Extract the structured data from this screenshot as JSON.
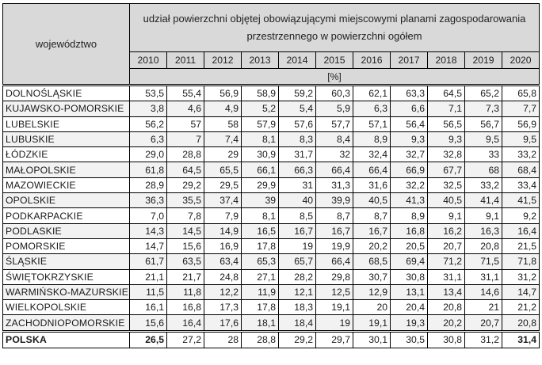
{
  "table": {
    "header": {
      "region_label": "województwo",
      "title": "udział powierzchni objętej obowiązującymi miejscowymi planami zagospodarowania przestrzennego w powierzchni ogółem",
      "years": [
        "2010",
        "2011",
        "2012",
        "2013",
        "2014",
        "2015",
        "2016",
        "2017",
        "2018",
        "2019",
        "2020"
      ],
      "unit": "[%]"
    },
    "rows": [
      {
        "name": "DOLNOŚLĄSKIE",
        "values": [
          "53,5",
          "55,4",
          "56,9",
          "58,9",
          "59,2",
          "60,3",
          "62,1",
          "63,3",
          "64,5",
          "65,2",
          "65,8"
        ]
      },
      {
        "name": "KUJAWSKO-POMORSKIE",
        "values": [
          "3,8",
          "4,6",
          "4,9",
          "5,2",
          "5,4",
          "5,9",
          "6,3",
          "6,6",
          "7,1",
          "7,3",
          "7,7"
        ]
      },
      {
        "name": "LUBELSKIE",
        "values": [
          "56,2",
          "57",
          "58",
          "57,9",
          "57,6",
          "57,7",
          "57,1",
          "56,4",
          "56,5",
          "56,7",
          "56,9"
        ]
      },
      {
        "name": "LUBUSKIE",
        "values": [
          "6,3",
          "7",
          "7,4",
          "8,1",
          "8,3",
          "8,4",
          "8,9",
          "9,3",
          "9,3",
          "9,5",
          "9,5"
        ]
      },
      {
        "name": "ŁÓDZKIE",
        "values": [
          "29,0",
          "28,8",
          "29",
          "30,9",
          "31,7",
          "32",
          "32,4",
          "32,7",
          "32,8",
          "33",
          "33,2"
        ]
      },
      {
        "name": "MAŁOPOLSKIE",
        "values": [
          "61,8",
          "64,5",
          "65,5",
          "66,1",
          "66,3",
          "66,4",
          "66,4",
          "66,9",
          "67,7",
          "68",
          "68,4"
        ]
      },
      {
        "name": "MAZOWIECKIE",
        "values": [
          "28,9",
          "29,2",
          "29,5",
          "29,9",
          "31",
          "31,3",
          "31,6",
          "32,2",
          "32,5",
          "33,2",
          "33,4"
        ]
      },
      {
        "name": "OPOLSKIE",
        "values": [
          "36,3",
          "35,5",
          "37,4",
          "39",
          "40",
          "39,9",
          "40,5",
          "41,3",
          "40,5",
          "41,4",
          "41,5"
        ]
      },
      {
        "name": "PODKARPACKIE",
        "values": [
          "7,0",
          "7,8",
          "7,9",
          "8,1",
          "8,5",
          "8,7",
          "8,7",
          "8,9",
          "9,1",
          "9,1",
          "9,2"
        ]
      },
      {
        "name": "PODLASKIE",
        "values": [
          "14,3",
          "14,5",
          "14,9",
          "16,5",
          "16,7",
          "16,7",
          "16,7",
          "16,8",
          "16,2",
          "16,3",
          "16,4"
        ]
      },
      {
        "name": "POMORSKIE",
        "values": [
          "14,7",
          "15,6",
          "16,9",
          "17,8",
          "19",
          "19,9",
          "20,2",
          "20,5",
          "20,7",
          "20,8",
          "21,5"
        ]
      },
      {
        "name": "ŚLĄSKIE",
        "values": [
          "61,7",
          "63,5",
          "63,4",
          "65,3",
          "65,7",
          "66,4",
          "68,5",
          "69,4",
          "71,2",
          "71,5",
          "71,8"
        ]
      },
      {
        "name": "ŚWIĘTOKRZYSKIE",
        "values": [
          "21,1",
          "21,7",
          "24,8",
          "27,1",
          "28,2",
          "29,8",
          "30,7",
          "30,8",
          "31,1",
          "31,1",
          "31,2"
        ]
      },
      {
        "name": "WARMIŃSKO-MAZURSKIE",
        "values": [
          "11,5",
          "11,8",
          "12,2",
          "11,9",
          "12,1",
          "12,5",
          "12,9",
          "13,1",
          "13,4",
          "14,6",
          "14,7"
        ]
      },
      {
        "name": "WIELKOPOLSKIE",
        "values": [
          "16,1",
          "16,8",
          "17,3",
          "17,8",
          "18,3",
          "19,1",
          "20",
          "20,4",
          "20,8",
          "21",
          "21,2"
        ]
      },
      {
        "name": "ZACHODNIOPOMORSKIE",
        "values": [
          "15,6",
          "16,4",
          "17,6",
          "18,1",
          "18,4",
          "19",
          "19,1",
          "19,3",
          "20,2",
          "20,7",
          "20,8"
        ]
      }
    ],
    "total": {
      "name": "POLSKA",
      "values": [
        "26,5",
        "27,2",
        "28",
        "28,8",
        "29,2",
        "29,7",
        "30,1",
        "30,5",
        "30,8",
        "31,2",
        "31,4"
      ]
    }
  }
}
